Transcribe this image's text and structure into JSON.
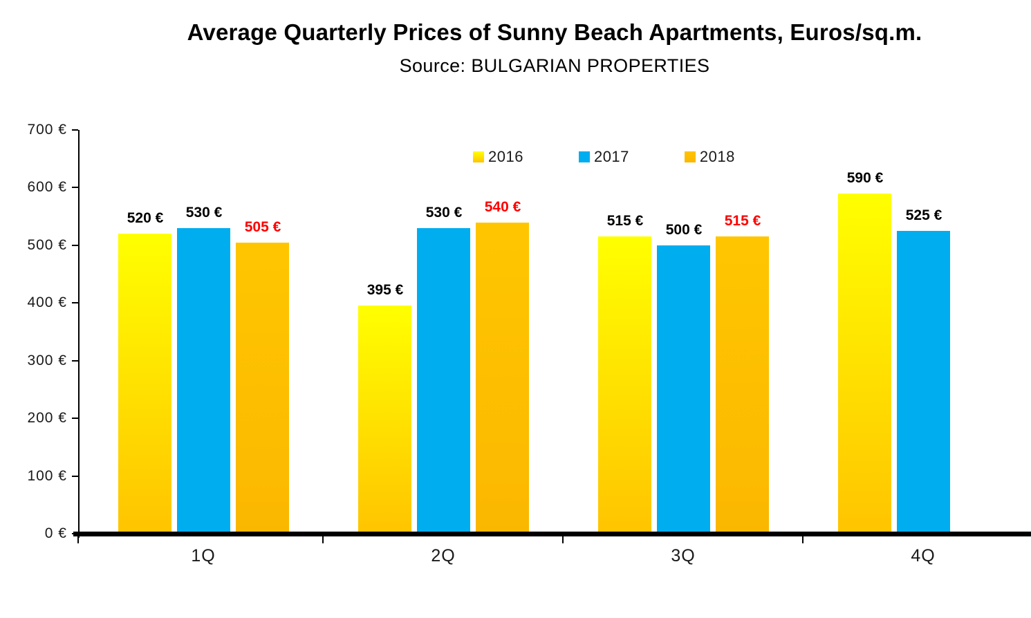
{
  "title": "Average Quarterly Prices of Sunny Beach Apartments, Euros/sq.m.",
  "subtitle": "Source: BULGARIAN PROPERTIES",
  "legend": {
    "items": [
      {
        "label": "2016",
        "swatch_top": "#FFFF00",
        "swatch_bottom": "#FFC400"
      },
      {
        "label": "2017",
        "swatch_top": "#00AEEF",
        "swatch_bottom": "#00AEEF"
      },
      {
        "label": "2018",
        "swatch_top": "#FFC400",
        "swatch_bottom": "#FBB700"
      }
    ]
  },
  "chart_data": {
    "type": "bar",
    "title": "Average Quarterly Prices of Sunny Beach Apartments, Euros/sq.m.",
    "subtitle": "Source: BULGARIAN PROPERTIES",
    "categories": [
      "1Q",
      "2Q",
      "3Q",
      "4Q"
    ],
    "series": [
      {
        "name": "2016",
        "values": [
          520,
          395,
          515,
          590
        ],
        "color_top": "#FFFF00",
        "color_bottom": "#FFC400",
        "label_color": "#000000"
      },
      {
        "name": "2017",
        "values": [
          530,
          530,
          500,
          525
        ],
        "color_top": "#00AEEF",
        "color_bottom": "#00AEEF",
        "label_color": "#000000"
      },
      {
        "name": "2018",
        "values": [
          505,
          540,
          515,
          null
        ],
        "color_top": "#FFC600",
        "color_bottom": "#FBB700",
        "label_color": "#FF0000"
      }
    ],
    "value_suffix": " €",
    "ylim": [
      0,
      700
    ],
    "ytick_values": [
      0,
      100,
      200,
      300,
      400,
      500,
      600,
      700
    ],
    "ytick_suffix": " €",
    "grid": false,
    "legend_position": "top-center",
    "axis_color": "#000000",
    "background_color": "#FFFFFF"
  }
}
